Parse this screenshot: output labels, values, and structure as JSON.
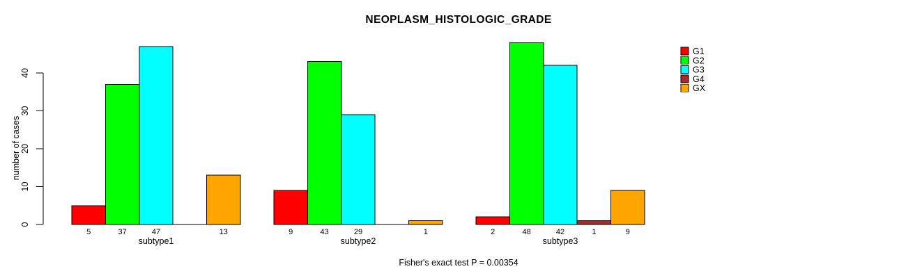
{
  "chart_data": {
    "type": "bar",
    "title": "NEOPLASM_HISTOLOGIC_GRADE",
    "xlabel": "",
    "ylabel": "number of cases",
    "ylim": [
      0,
      40
    ],
    "yticks": [
      0,
      10,
      20,
      30,
      40
    ],
    "grid": false,
    "legend_position": "right",
    "categories": [
      "subtype1",
      "subtype2",
      "subtype3"
    ],
    "series": [
      {
        "name": "G1",
        "color": "#ff0000",
        "values": [
          5,
          9,
          2
        ]
      },
      {
        "name": "G2",
        "color": "#00ff00",
        "values": [
          37,
          43,
          48
        ]
      },
      {
        "name": "G3",
        "color": "#00ffff",
        "values": [
          47,
          29,
          42
        ]
      },
      {
        "name": "G4",
        "color": "#a52a2a",
        "values": [
          0,
          0,
          1
        ]
      },
      {
        "name": "GX",
        "color": "#ffa500",
        "values": [
          13,
          1,
          9
        ]
      }
    ],
    "bar_value_labels": {
      "subtype1": [
        5,
        37,
        47,
        null,
        13
      ],
      "subtype2": [
        9,
        43,
        29,
        null,
        1
      ],
      "subtype3": [
        2,
        48,
        42,
        1,
        9
      ]
    },
    "annotation": "Fisher's exact test P = 0.00354",
    "axis_color": "#000000",
    "bar_border_color": "#000000",
    "background_color": "#ffffff"
  }
}
